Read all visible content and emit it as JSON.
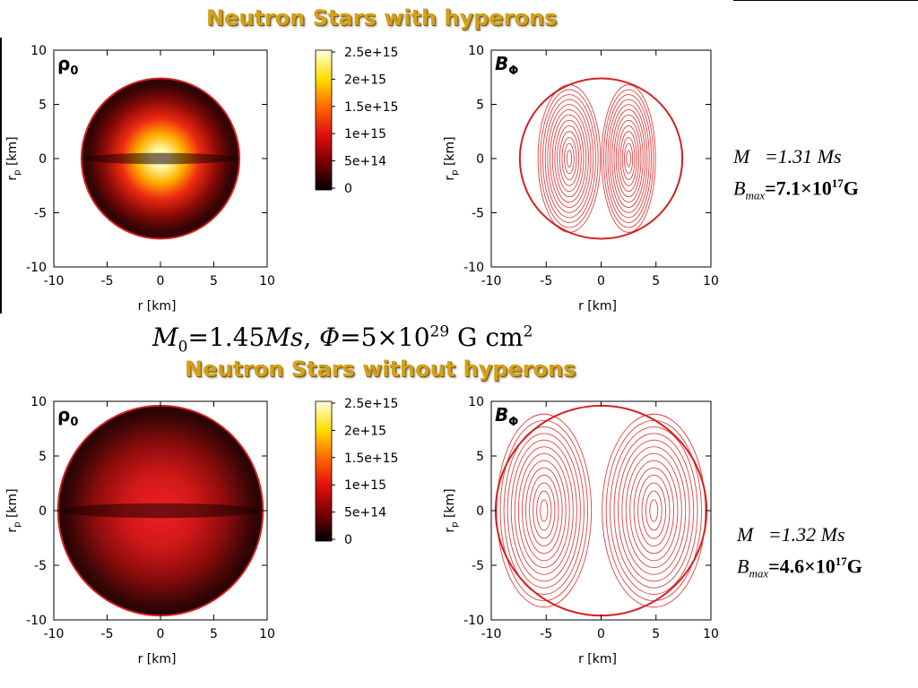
{
  "titles": {
    "top": "Neutron Stars with hyperons",
    "bottom": "Neutron Stars without hyperons"
  },
  "formula": {
    "m_sym": "M",
    "m_sub": "0",
    "m_eq": "=1.45",
    "ms": "Ms",
    "sep": ", ",
    "phi_sym": "Φ",
    "phi_eq": "=5×10",
    "phi_exp": "29",
    "phi_unit": " G cm",
    "phi_unit_exp": "2"
  },
  "info_top": {
    "mass_label": "M",
    "mass_value": "=1.31 Ms",
    "bmax_label": "B",
    "bmax_sub": "max",
    "bmax_value": "=7.1×10",
    "bmax_exp": "17",
    "bmax_unit": "G"
  },
  "info_bottom": {
    "mass_label": "M",
    "mass_value": "=1.32 Ms",
    "bmax_label": "B",
    "bmax_sub": "max",
    "bmax_value": "=4.6×10",
    "bmax_exp": "17",
    "bmax_unit": "G"
  },
  "axes": {
    "xlabel": "r  [km]",
    "ylabel": "r",
    "ylabel_sub": "p",
    "ylabel_unit": " [km]",
    "xticks": [
      "-10",
      "-5",
      "0",
      "5",
      "10"
    ],
    "yticks": [
      "10",
      "5",
      "0",
      "-5",
      "-10"
    ]
  },
  "colorbar": {
    "ticks": [
      "2.5e+15",
      "2e+15",
      "1.5e+15",
      "1e+15",
      "5e+14",
      "0"
    ]
  },
  "panel_labels": {
    "rho_sym": "ρ",
    "rho_sub": "0",
    "b_sym": "B",
    "b_sub": "Φ"
  },
  "colors": {
    "title": "#d4a017",
    "star_outline": "#d62020",
    "contour": "#e04040"
  },
  "chart_data": [
    {
      "type": "heatmap",
      "title": "ρ0",
      "xlabel": "r  [km]",
      "ylabel": "rp [km]",
      "xlim": [
        -10,
        10
      ],
      "ylim": [
        -10,
        10
      ],
      "star_radius_km": 7.4,
      "colorbar": [
        0,
        2500000000000000.0
      ]
    },
    {
      "type": "line",
      "title": "BΦ",
      "xlabel": "r  [km]",
      "ylabel": "rp [km]",
      "xlim": [
        -10,
        10
      ],
      "ylim": [
        -10,
        10
      ],
      "star_radius_km": 7.4,
      "contour_centers_km": [
        -2.9,
        2.5
      ]
    },
    {
      "type": "heatmap",
      "title": "ρ0",
      "xlabel": "r  [km]",
      "ylabel": "rp [km]",
      "xlim": [
        -10,
        10
      ],
      "ylim": [
        -10,
        10
      ],
      "star_radius_km": 9.6,
      "colorbar": [
        0,
        2500000000000000.0
      ]
    },
    {
      "type": "line",
      "title": "BΦ",
      "xlabel": "r  [km]",
      "ylabel": "rp [km]",
      "xlim": [
        -10,
        10
      ],
      "ylim": [
        -10,
        10
      ],
      "star_radius_km": 9.6,
      "contour_centers_km": [
        -5.2,
        4.8
      ]
    }
  ]
}
